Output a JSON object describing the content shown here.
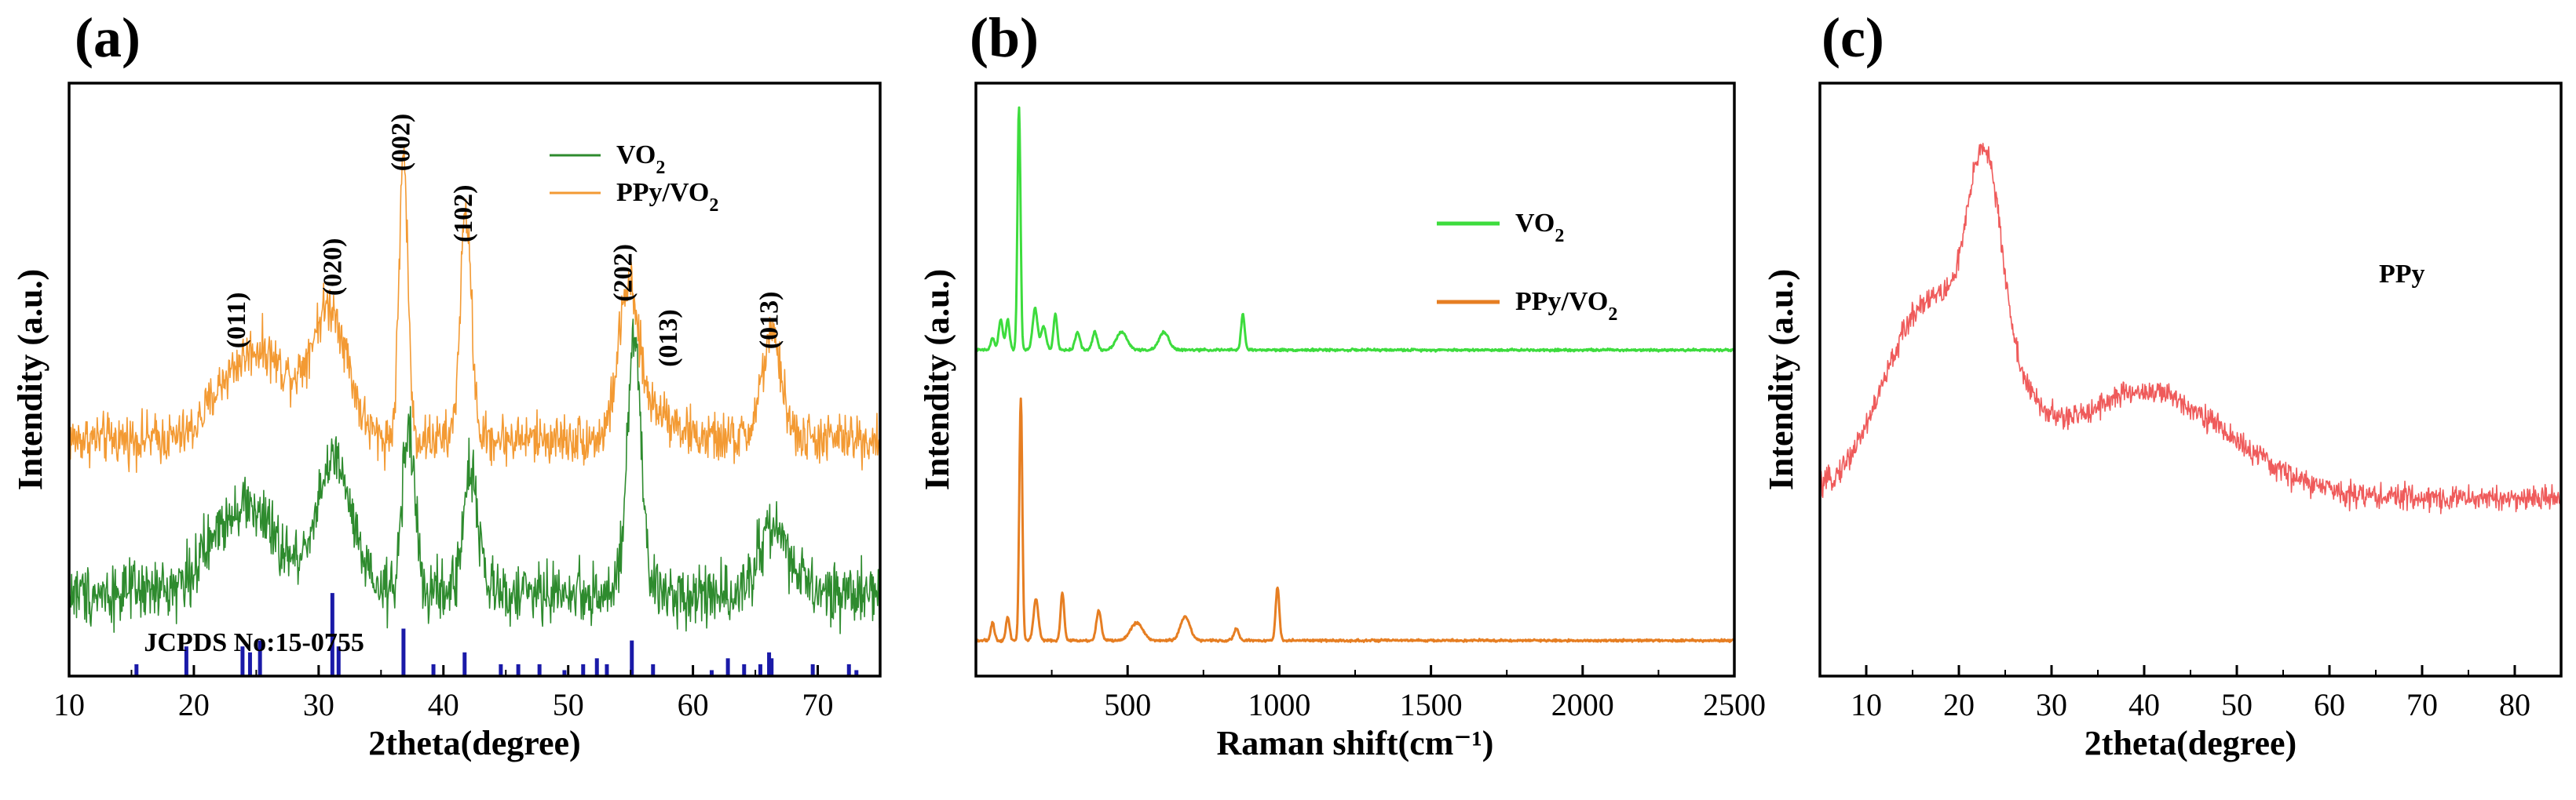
{
  "chart_data": [
    {
      "panel": "(a)",
      "type": "line",
      "xlabel": "2theta(degree)",
      "ylabel": "Intendity (a.u.)",
      "xlim": [
        10,
        75
      ],
      "ylim": [
        0,
        100
      ],
      "xticks": [
        10,
        20,
        30,
        40,
        50,
        60,
        70
      ],
      "legend": [
        {
          "label": "VO",
          "sub": "2",
          "color": "#2e8b2e"
        },
        {
          "label": "PPy/VO",
          "sub": "2",
          "color": "#f39a33"
        }
      ],
      "series": [
        {
          "name": "PPy/VO2",
          "color": "#f39a33",
          "baseline": 40,
          "noise": 2.6,
          "peaks": [
            [
              22.5,
              8,
              1.5
            ],
            [
              25.2,
              11,
              1.5
            ],
            [
              28,
              7,
              2
            ],
            [
              31,
              20,
              1.4
            ],
            [
              36.8,
              48,
              0.35
            ],
            [
              41.8,
              38,
              0.45
            ],
            [
              54.8,
              24,
              0.8
            ],
            [
              57,
              5,
              1.5
            ],
            [
              66.3,
              17,
              0.8
            ]
          ]
        },
        {
          "name": "VO2",
          "color": "#2e8b2e",
          "baseline": 14,
          "noise": 3.2,
          "peaks": [
            [
              24,
              15,
              2.5
            ],
            [
              31.2,
              22,
              1.4
            ],
            [
              37.2,
              28,
              0.5
            ],
            [
              42.2,
              21,
              0.6
            ],
            [
              55.3,
              43,
              0.55
            ],
            [
              66.5,
              11,
              1.2
            ]
          ]
        }
      ],
      "reference": {
        "label": "JCPDS No:15-0755",
        "color": "#1a1aa8",
        "lines": [
          [
            15.4,
            2
          ],
          [
            19.4,
            5
          ],
          [
            23.9,
            5
          ],
          [
            24.5,
            4
          ],
          [
            25.3,
            6
          ],
          [
            31.1,
            14
          ],
          [
            31.6,
            5
          ],
          [
            36.8,
            8
          ],
          [
            39.2,
            2
          ],
          [
            41.7,
            4
          ],
          [
            44.6,
            2
          ],
          [
            46,
            2
          ],
          [
            47.7,
            2
          ],
          [
            49.7,
            1
          ],
          [
            51.2,
            2
          ],
          [
            52.3,
            3
          ],
          [
            53.1,
            2
          ],
          [
            55.1,
            6
          ],
          [
            56.8,
            2
          ],
          [
            61.5,
            1
          ],
          [
            62.8,
            3
          ],
          [
            64.1,
            2
          ],
          [
            65.4,
            2
          ],
          [
            66.1,
            4
          ],
          [
            66.3,
            3
          ],
          [
            69.6,
            2
          ],
          [
            72.5,
            2
          ],
          [
            73.1,
            1
          ]
        ]
      },
      "annotations": [
        {
          "text": "(011)",
          "x": 23.6,
          "y": 60
        },
        {
          "text": "(020)",
          "x": 31.3,
          "y": 69
        },
        {
          "text": "(002)",
          "x": 36.8,
          "y": 90
        },
        {
          "text": "(102)",
          "x": 41.8,
          "y": 78
        },
        {
          "text": "(202)",
          "x": 54.6,
          "y": 68
        },
        {
          "text": "(013)",
          "x": 58.2,
          "y": 57
        },
        {
          "text": "(013)",
          "x": 66.3,
          "y": 60
        }
      ]
    },
    {
      "panel": "(b)",
      "type": "line",
      "xlabel": "Raman shift(cm⁻¹)",
      "ylabel": "Intendity (a.u.)",
      "xlim": [
        0,
        2500
      ],
      "ylim": [
        0,
        100
      ],
      "xticks": [
        500,
        1000,
        1500,
        2000,
        2500
      ],
      "legend": [
        {
          "label": "VO",
          "sub": "2",
          "color": "#3ddc3d"
        },
        {
          "label": "PPy/VO",
          "sub": "2",
          "color": "#e67e22"
        }
      ],
      "series": [
        {
          "name": "VO2",
          "color": "#3ddc3d",
          "baseline": 55,
          "noise": 0.12,
          "peaks": [
            [
              55,
              2,
              6
            ],
            [
              82,
              5,
              7
            ],
            [
              105,
              5,
              6
            ],
            [
              142,
              41,
              5
            ],
            [
              195,
              7,
              8
            ],
            [
              223,
              4,
              8
            ],
            [
              262,
              6,
              6
            ],
            [
              335,
              3,
              8
            ],
            [
              392,
              3,
              8
            ],
            [
              480,
              3,
              18
            ],
            [
              620,
              3,
              16
            ],
            [
              880,
              6,
              6
            ]
          ]
        },
        {
          "name": "PPy/VO2",
          "color": "#e67e22",
          "baseline": 6,
          "noise": 0.12,
          "peaks": [
            [
              55,
              3,
              6
            ],
            [
              105,
              4,
              6
            ],
            [
              148,
              41,
              5
            ],
            [
              198,
              7,
              8
            ],
            [
              285,
              8,
              6
            ],
            [
              405,
              5,
              8
            ],
            [
              530,
              3,
              20
            ],
            [
              690,
              4,
              16
            ],
            [
              858,
              2,
              8
            ],
            [
              994,
              9,
              6
            ]
          ]
        }
      ]
    },
    {
      "panel": "(c)",
      "type": "line",
      "xlabel": "2theta(degree)",
      "ylabel": "Intendity (a.u.)",
      "xlim": [
        5,
        85
      ],
      "ylim": [
        0,
        100
      ],
      "xticks": [
        10,
        20,
        30,
        40,
        50,
        60,
        70,
        80
      ],
      "legend": [
        {
          "label": "PPy",
          "sub": "",
          "color": "#000000"
        }
      ],
      "series": [
        {
          "name": "PPy",
          "color": "#ef5b5b",
          "baseline": 30,
          "noise": 1.3,
          "peaks": [
            [
              17,
              33,
              5
            ],
            [
              22.8,
              35,
              1.8
            ],
            [
              26,
              8,
              3
            ],
            [
              40,
              18,
              9
            ]
          ]
        }
      ]
    }
  ]
}
